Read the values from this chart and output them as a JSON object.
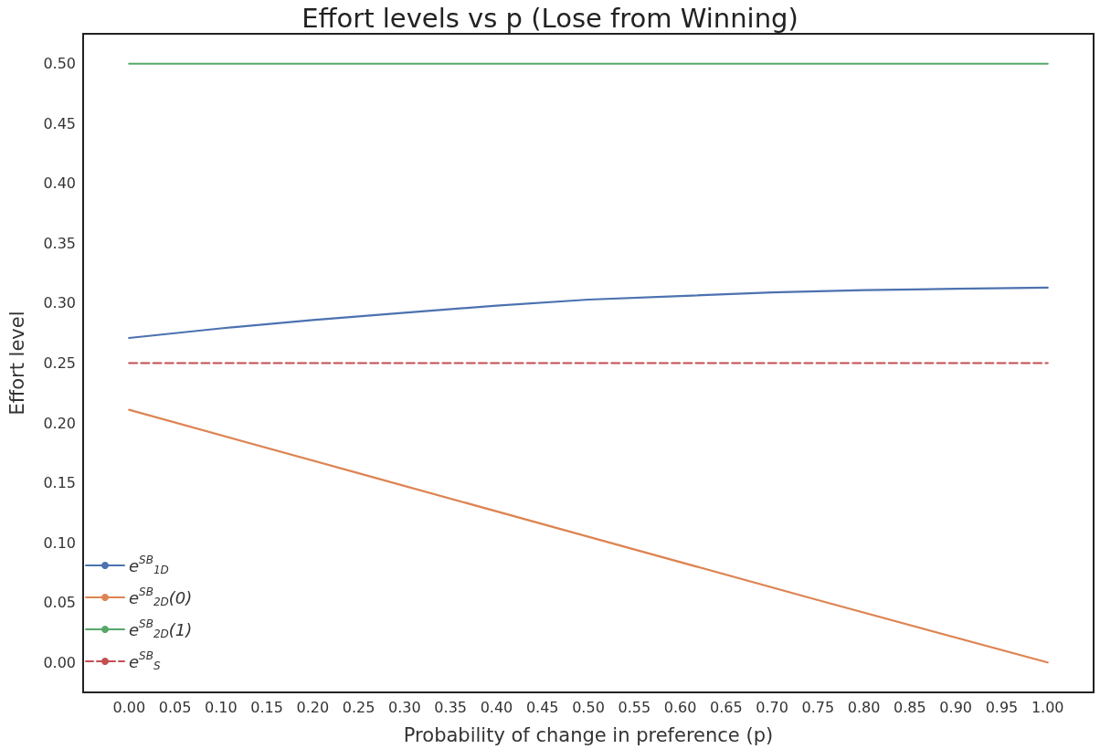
{
  "chart_data": {
    "type": "line",
    "title": "Effort levels vs p (Lose from Winning)",
    "xlabel": "Probability of change in preference (p)",
    "ylabel": "Effort level",
    "series": [
      {
        "name": "e$^{SB}$$_{1D}$",
        "color": "#4c72b0",
        "x": [
          0,
          0.1,
          0.2,
          0.3,
          0.4,
          0.5,
          0.6,
          0.7,
          0.8,
          0.9,
          1
        ],
        "values": [
          0.271,
          0.279,
          0.286,
          0.292,
          0.298,
          0.303,
          0.306,
          0.309,
          0.311,
          0.312,
          0.313
        ]
      },
      {
        "name": "e$^{SB}$$_{2D}$(0)",
        "color": "#dd8452",
        "x": [
          0,
          0.25,
          0.5,
          0.75,
          1
        ],
        "values": [
          0.211,
          0.158,
          0.105,
          0.052,
          0
        ]
      },
      {
        "name": "e$^{SB}$$_{2D}$(1)",
        "color": "#55a868",
        "x": [
          0,
          1
        ],
        "values": [
          0.5,
          0.5
        ]
      },
      {
        "name": "e$^{SB}$$_{S}$",
        "color": "#c44e52",
        "x": [
          0,
          1
        ],
        "values": [
          0.25,
          0.25
        ],
        "line_style": "dashed"
      }
    ],
    "xlim": [
      -0.05,
      1.05
    ],
    "ylim": [
      -0.025,
      0.525
    ],
    "xticks": [
      {
        "value": 0,
        "label": "0.00"
      },
      {
        "value": 0.05,
        "label": "0.05"
      },
      {
        "value": 0.1,
        "label": "0.10"
      },
      {
        "value": 0.15,
        "label": "0.15"
      },
      {
        "value": 0.2,
        "label": "0.20"
      },
      {
        "value": 0.25,
        "label": "0.25"
      },
      {
        "value": 0.3,
        "label": "0.30"
      },
      {
        "value": 0.35,
        "label": "0.35"
      },
      {
        "value": 0.4,
        "label": "0.40"
      },
      {
        "value": 0.45,
        "label": "0.45"
      },
      {
        "value": 0.5,
        "label": "0.50"
      },
      {
        "value": 0.55,
        "label": "0.55"
      },
      {
        "value": 0.6,
        "label": "0.60"
      },
      {
        "value": 0.65,
        "label": "0.65"
      },
      {
        "value": 0.7,
        "label": "0.70"
      },
      {
        "value": 0.75,
        "label": "0.75"
      },
      {
        "value": 0.8,
        "label": "0.80"
      },
      {
        "value": 0.85,
        "label": "0.85"
      },
      {
        "value": 0.9,
        "label": "0.90"
      },
      {
        "value": 0.95,
        "label": "0.95"
      },
      {
        "value": 1,
        "label": "1.00"
      }
    ],
    "yticks": [
      {
        "value": 0,
        "label": "0.00"
      },
      {
        "value": 0.05,
        "label": "0.05"
      },
      {
        "value": 0.1,
        "label": "0.10"
      },
      {
        "value": 0.15,
        "label": "0.15"
      },
      {
        "value": 0.2,
        "label": "0.20"
      },
      {
        "value": 0.25,
        "label": "0.25"
      },
      {
        "value": 0.3,
        "label": "0.30"
      },
      {
        "value": 0.35,
        "label": "0.35"
      },
      {
        "value": 0.4,
        "label": "0.40"
      },
      {
        "value": 0.45,
        "label": "0.45"
      },
      {
        "value": 0.5,
        "label": "0.50"
      }
    ],
    "grid": false,
    "legend": "bottom left",
    "marker": "none",
    "line_style": "solid"
  }
}
